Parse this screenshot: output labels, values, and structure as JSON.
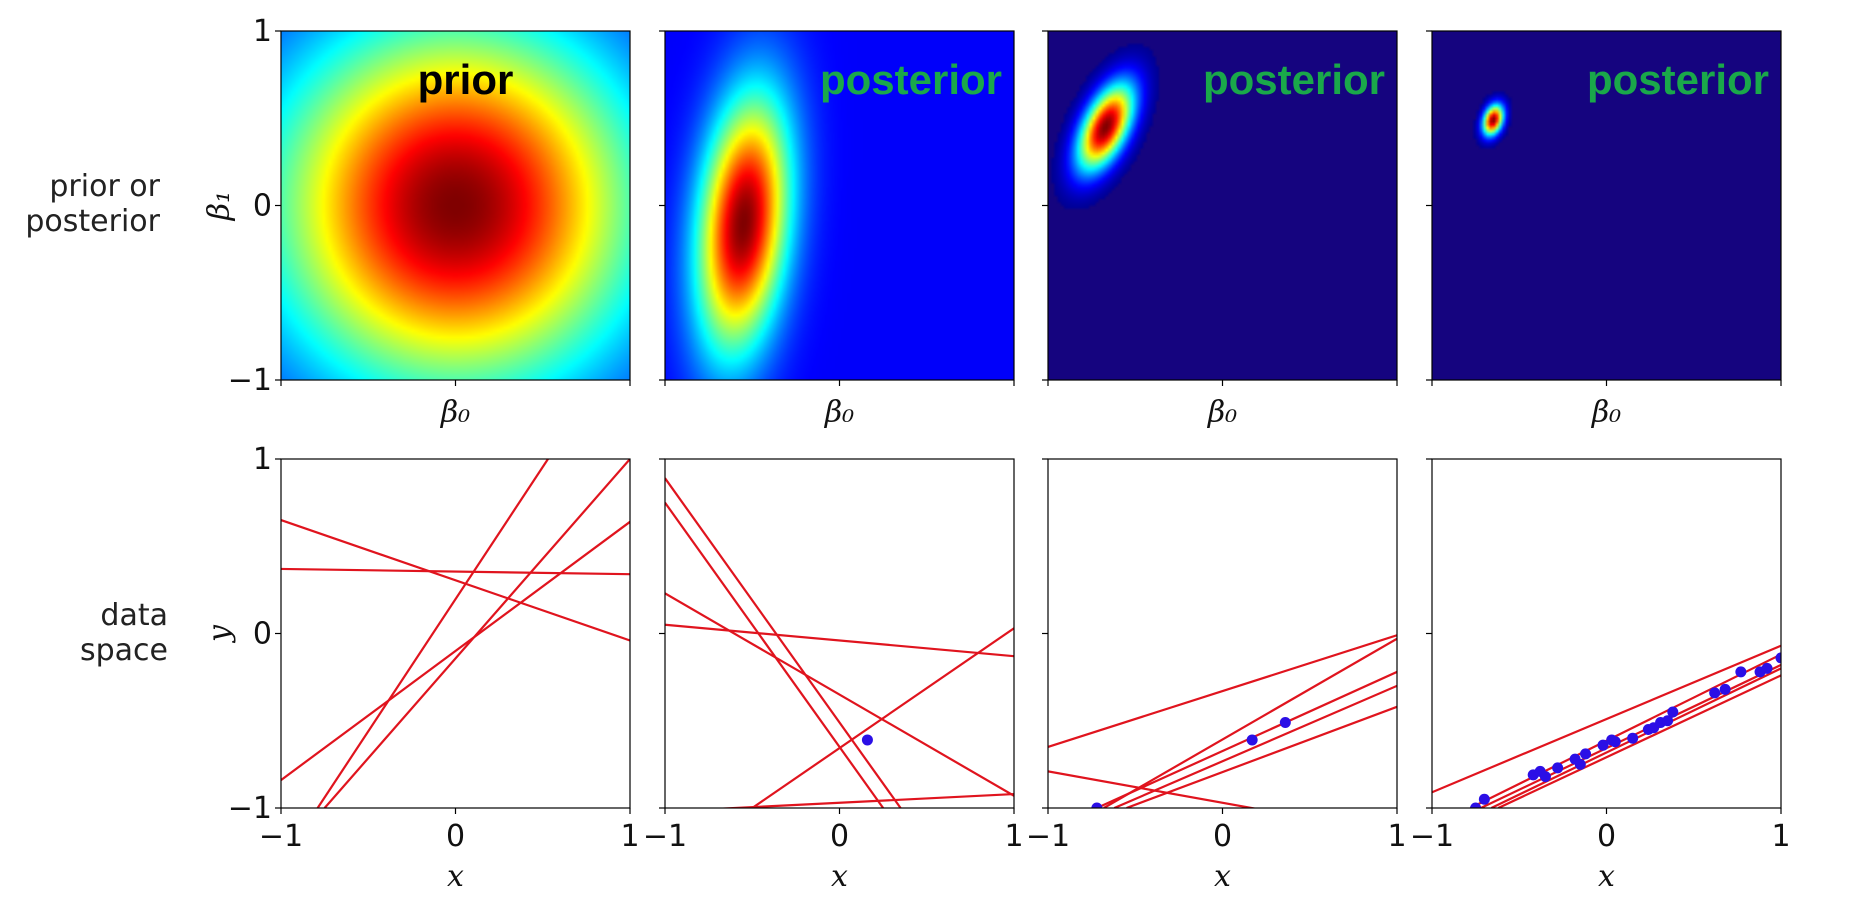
{
  "row_labels": {
    "top": [
      "prior or",
      "posterior"
    ],
    "bottom": [
      "data",
      "space"
    ]
  },
  "colors": {
    "prior_title": "#000000",
    "posterior_title": "#1aa84a",
    "line": "#e0141e",
    "point": "#2b0fe6",
    "colormap_low": "#15047f"
  },
  "chart_data": [
    {
      "type": "heatmap",
      "title": "prior",
      "xlabel": "β₀",
      "ylabel": "β₁",
      "xlim": [
        -1,
        1
      ],
      "ylim": [
        -1,
        1
      ],
      "yticks": [
        "−1",
        "0",
        "1"
      ],
      "density": {
        "mean": [
          0,
          0
        ],
        "sd": [
          0.72,
          0.72
        ],
        "rho": 0,
        "hard_edge": false
      },
      "grid": false
    },
    {
      "type": "heatmap",
      "title": "posterior",
      "xlabel": "β₀",
      "ylabel": "β₁",
      "xlim": [
        -1,
        1
      ],
      "ylim": [
        -1,
        1
      ],
      "density": {
        "mean": [
          -0.55,
          -0.1
        ],
        "sd": [
          0.18,
          0.5
        ],
        "rho": 0.25,
        "hard_edge": false
      },
      "grid": false
    },
    {
      "type": "heatmap",
      "title": "posterior",
      "xlabel": "β₀",
      "ylabel": "β₁",
      "xlim": [
        -1,
        1
      ],
      "ylim": [
        -1,
        1
      ],
      "density": {
        "mean": [
          -0.67,
          0.45
        ],
        "sd": [
          0.11,
          0.17
        ],
        "rho": 0.55,
        "hard_edge": true
      },
      "grid": false
    },
    {
      "type": "heatmap",
      "title": "posterior",
      "xlabel": "β₀",
      "ylabel": "β₁",
      "xlim": [
        -1,
        1
      ],
      "ylim": [
        -1,
        1
      ],
      "density": {
        "mean": [
          -0.65,
          0.49
        ],
        "sd": [
          0.04,
          0.06
        ],
        "rho": 0.3,
        "hard_edge": true
      },
      "grid": false
    },
    {
      "type": "line",
      "xlabel": "x",
      "ylabel": "y",
      "xlim": [
        -1,
        1
      ],
      "ylim": [
        -1,
        1
      ],
      "xticks": [
        "−1",
        "0",
        "1"
      ],
      "yticks": [
        "−1",
        "0",
        "1"
      ],
      "lines": [
        {
          "x": [
            -1,
            1
          ],
          "y": [
            0.65,
            -0.04
          ]
        },
        {
          "x": [
            -1,
            1
          ],
          "y": [
            0.37,
            0.34
          ]
        },
        {
          "x": [
            -0.79,
            0.53
          ],
          "y": [
            -1,
            1
          ]
        },
        {
          "x": [
            -0.75,
            1
          ],
          "y": [
            -1,
            1
          ]
        },
        {
          "x": [
            -1,
            1
          ],
          "y": [
            -0.84,
            0.64
          ]
        }
      ],
      "points": {
        "x": [],
        "y": []
      }
    },
    {
      "type": "line",
      "xlabel": "x",
      "ylabel": "y",
      "xlim": [
        -1,
        1
      ],
      "ylim": [
        -1,
        1
      ],
      "xticks": [
        "−1",
        "0",
        "1"
      ],
      "lines": [
        {
          "x": [
            -1,
            0.35
          ],
          "y": [
            0.89,
            -1
          ]
        },
        {
          "x": [
            -1,
            0.25
          ],
          "y": [
            0.75,
            -1
          ]
        },
        {
          "x": [
            -1,
            1
          ],
          "y": [
            0.23,
            -0.93
          ]
        },
        {
          "x": [
            -1,
            1
          ],
          "y": [
            0.05,
            -0.13
          ]
        },
        {
          "x": [
            -0.5,
            1
          ],
          "y": [
            -1,
            0.03
          ]
        },
        {
          "x": [
            -1,
            1
          ],
          "y": [
            -1.02,
            -0.92
          ]
        }
      ],
      "points": {
        "x": [
          0.16
        ],
        "y": [
          -0.61
        ]
      }
    },
    {
      "type": "line",
      "xlabel": "x",
      "ylabel": "y",
      "xlim": [
        -1,
        1
      ],
      "ylim": [
        -1,
        1
      ],
      "xticks": [
        "−1",
        "0",
        "1"
      ],
      "lines": [
        {
          "x": [
            -1,
            1
          ],
          "y": [
            -0.65,
            -0.01
          ]
        },
        {
          "x": [
            -1,
            1
          ],
          "y": [
            -0.79,
            -1.15
          ]
        },
        {
          "x": [
            -0.68,
            1
          ],
          "y": [
            -1,
            -0.03
          ]
        },
        {
          "x": [
            -0.62,
            1
          ],
          "y": [
            -1,
            -0.3
          ]
        },
        {
          "x": [
            -0.55,
            1
          ],
          "y": [
            -1,
            -0.42
          ]
        },
        {
          "x": [
            -0.72,
            1
          ],
          "y": [
            -1,
            -0.22
          ]
        }
      ],
      "points": {
        "x": [
          -0.72,
          0.17,
          0.36
        ],
        "y": [
          -1.0,
          -0.61,
          -0.51
        ]
      }
    },
    {
      "type": "line",
      "xlabel": "x",
      "ylabel": "y",
      "xlim": [
        -1,
        1
      ],
      "ylim": [
        -1,
        1
      ],
      "xticks": [
        "−1",
        "0",
        "1"
      ],
      "lines": [
        {
          "x": [
            -1,
            1
          ],
          "y": [
            -0.91,
            -0.07
          ]
        },
        {
          "x": [
            -0.78,
            1
          ],
          "y": [
            -1,
            -0.12
          ]
        },
        {
          "x": [
            -0.62,
            1
          ],
          "y": [
            -1,
            -0.24
          ]
        },
        {
          "x": [
            -0.72,
            1
          ],
          "y": [
            -1,
            -0.18
          ]
        },
        {
          "x": [
            -0.66,
            1
          ],
          "y": [
            -1,
            -0.2
          ]
        }
      ],
      "points": {
        "x": [
          -0.75,
          -0.7,
          -0.42,
          -0.38,
          -0.35,
          -0.28,
          -0.18,
          -0.15,
          -0.12,
          -0.02,
          0.03,
          0.05,
          0.15,
          0.24,
          0.27,
          0.31,
          0.35,
          0.38,
          0.62,
          0.68,
          0.77,
          0.88,
          0.92,
          1.0
        ],
        "y": [
          -1.0,
          -0.95,
          -0.81,
          -0.79,
          -0.82,
          -0.77,
          -0.72,
          -0.75,
          -0.69,
          -0.64,
          -0.61,
          -0.62,
          -0.6,
          -0.55,
          -0.54,
          -0.51,
          -0.5,
          -0.45,
          -0.34,
          -0.32,
          -0.22,
          -0.22,
          -0.2,
          -0.14
        ]
      }
    }
  ]
}
